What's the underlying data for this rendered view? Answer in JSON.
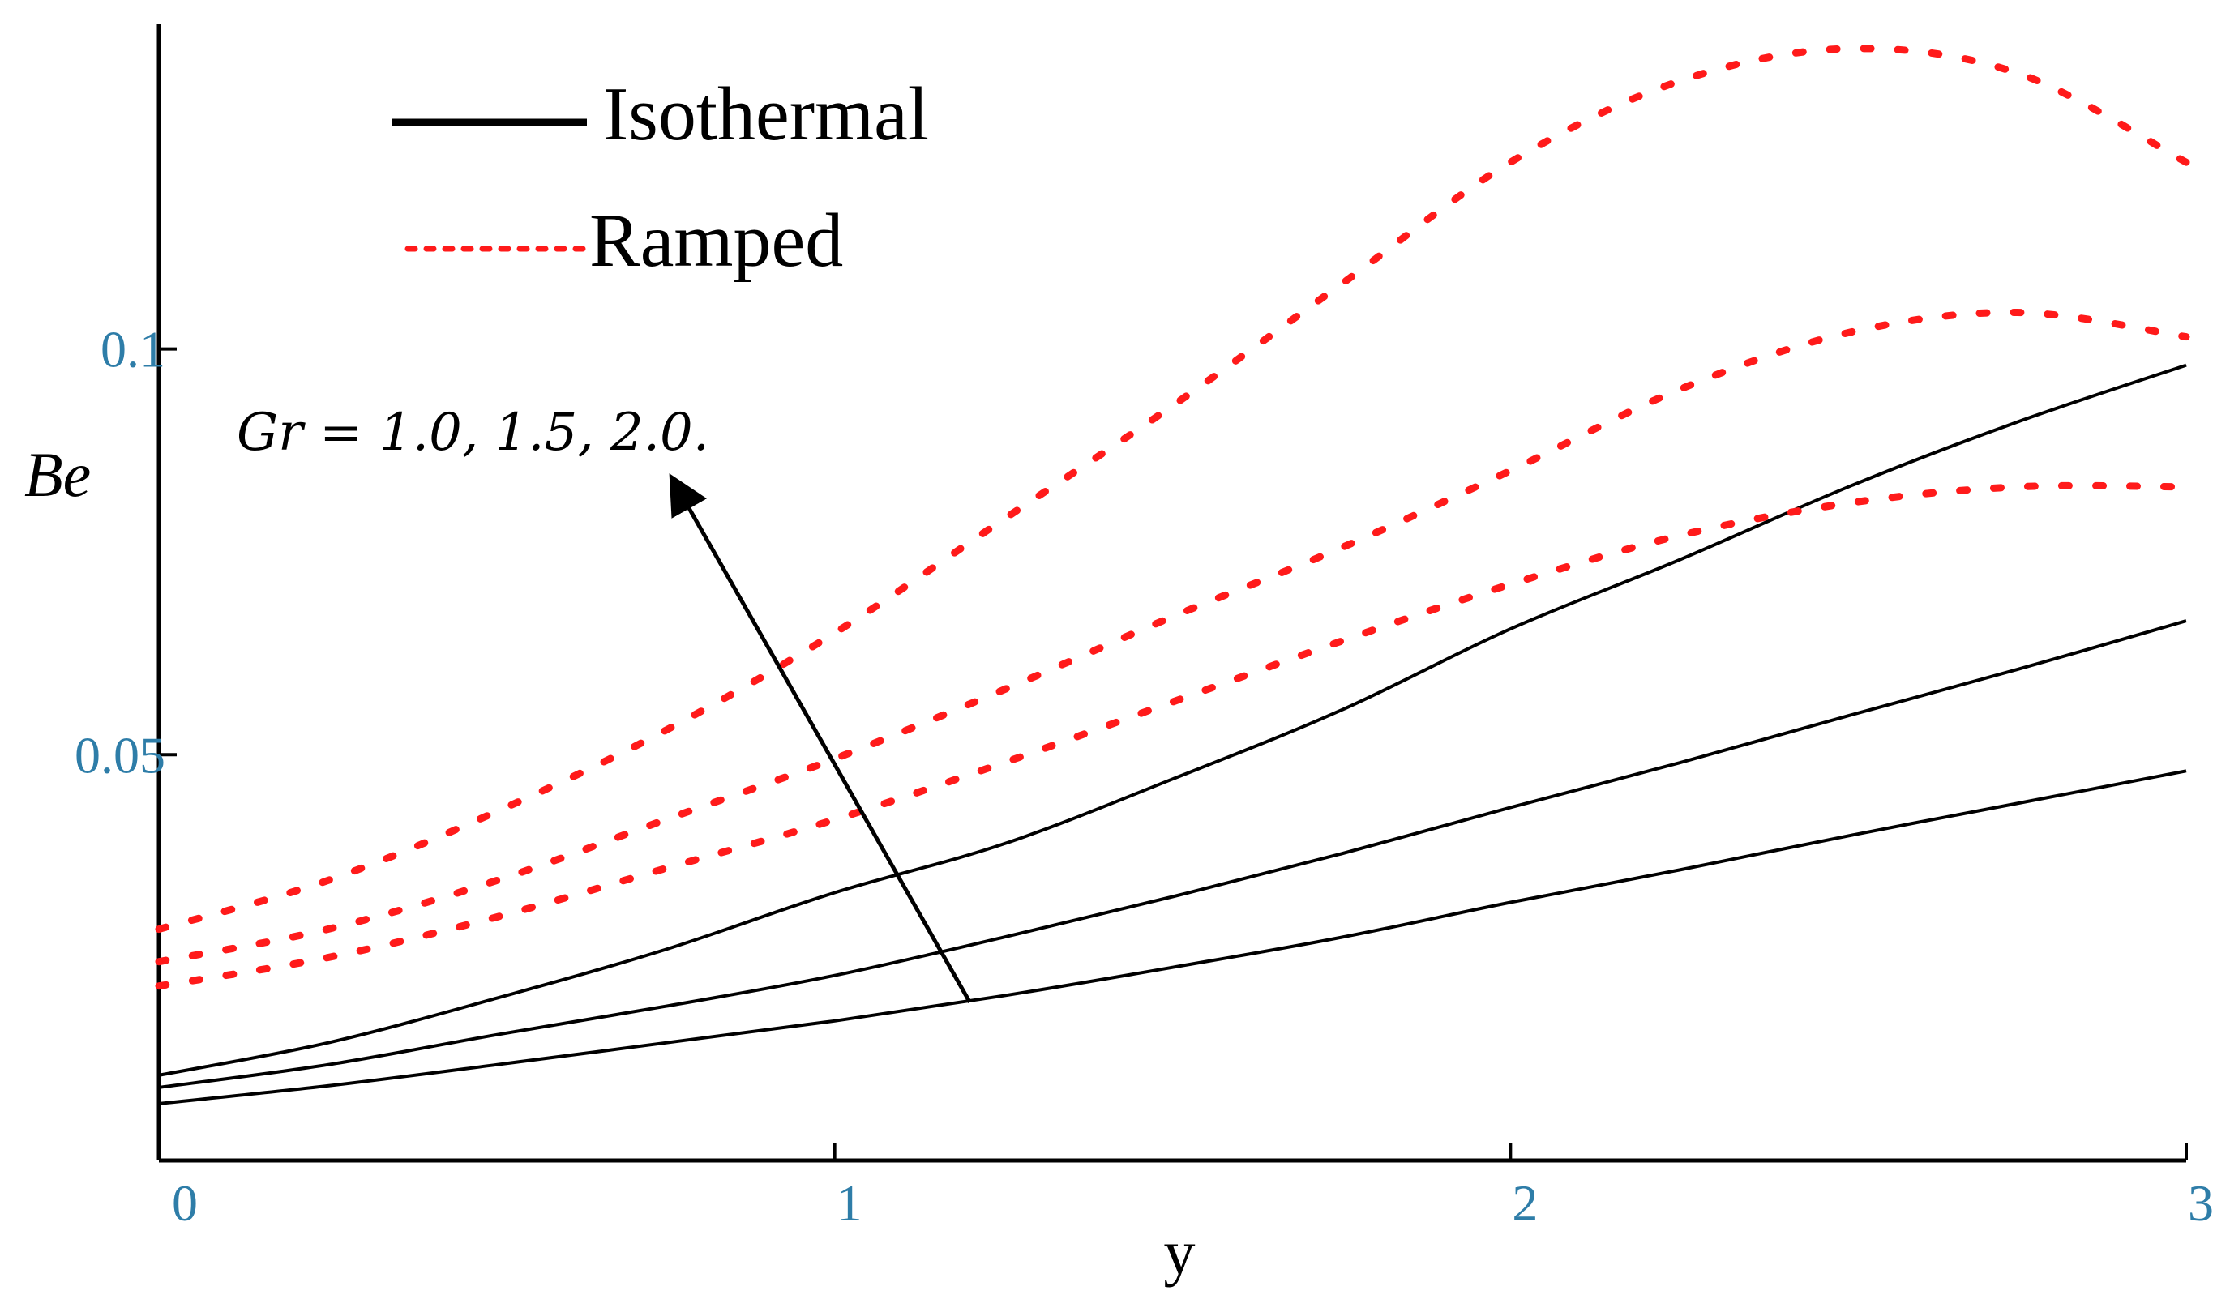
{
  "chart_data": {
    "type": "line",
    "title": "",
    "xlabel": "y",
    "ylabel": "Be",
    "xlim": [
      0,
      3
    ],
    "ylim": [
      0,
      0.14
    ],
    "x_ticks": [
      0,
      1,
      2,
      3
    ],
    "x_tick_labels": [
      "0",
      "1",
      "2",
      "3"
    ],
    "y_ticks": [
      0.05,
      0.1
    ],
    "y_tick_labels": [
      "0.05",
      "0.1"
    ],
    "x": [
      0,
      0.25,
      0.5,
      0.75,
      1.0,
      1.25,
      1.5,
      1.75,
      2.0,
      2.25,
      2.5,
      2.75,
      3.0
    ],
    "series": [
      {
        "name": "Isothermal Gr=1.0",
        "style": "solid",
        "color": "#000000",
        "values": [
          0.007,
          0.0092,
          0.0118,
          0.0145,
          0.0172,
          0.0203,
          0.0238,
          0.0275,
          0.0318,
          0.0358,
          0.04,
          0.044,
          0.048
        ]
      },
      {
        "name": "Isothermal Gr=1.5",
        "style": "solid",
        "color": "#000000",
        "values": [
          0.009,
          0.0118,
          0.0155,
          0.019,
          0.0228,
          0.0275,
          0.0325,
          0.0378,
          0.0435,
          0.049,
          0.0548,
          0.0605,
          0.0665
        ]
      },
      {
        "name": "Isothermal Gr=2.0",
        "style": "solid",
        "color": "#000000",
        "values": [
          0.0105,
          0.0145,
          0.02,
          0.026,
          0.033,
          0.039,
          0.047,
          0.0555,
          0.0655,
          0.074,
          0.083,
          0.091,
          0.098
        ]
      },
      {
        "name": "Ramped Gr=1.0",
        "style": "dotted",
        "color": "#ff1a1a",
        "values": [
          0.0215,
          0.025,
          0.03,
          0.036,
          0.042,
          0.049,
          0.0565,
          0.064,
          0.071,
          0.077,
          0.081,
          0.083,
          0.083
        ]
      },
      {
        "name": "Ramped Gr=1.5",
        "style": "dotted",
        "color": "#ff1a1a",
        "values": [
          0.0245,
          0.0285,
          0.0345,
          0.042,
          0.0495,
          0.058,
          0.067,
          0.0755,
          0.085,
          0.095,
          0.102,
          0.1045,
          0.1015
        ]
      },
      {
        "name": "Ramped Gr=2.0",
        "style": "dotted",
        "color": "#ff1a1a",
        "values": [
          0.0285,
          0.0345,
          0.043,
          0.053,
          0.065,
          0.079,
          0.093,
          0.108,
          0.123,
          0.133,
          0.137,
          0.134,
          0.123
        ]
      }
    ],
    "legend": [
      {
        "label": "Isothermal",
        "style": "solid",
        "color": "#000000"
      },
      {
        "label": "Ramped",
        "style": "dotted",
        "color": "#ff1a1a"
      }
    ],
    "legend_position": "top-left",
    "annotation": {
      "text": "Gr = 1.0, 1.5, 2.0.",
      "arrow_from": [
        1.2,
        0.0195
      ],
      "arrow_to": [
        0.77,
        0.0825
      ]
    }
  }
}
